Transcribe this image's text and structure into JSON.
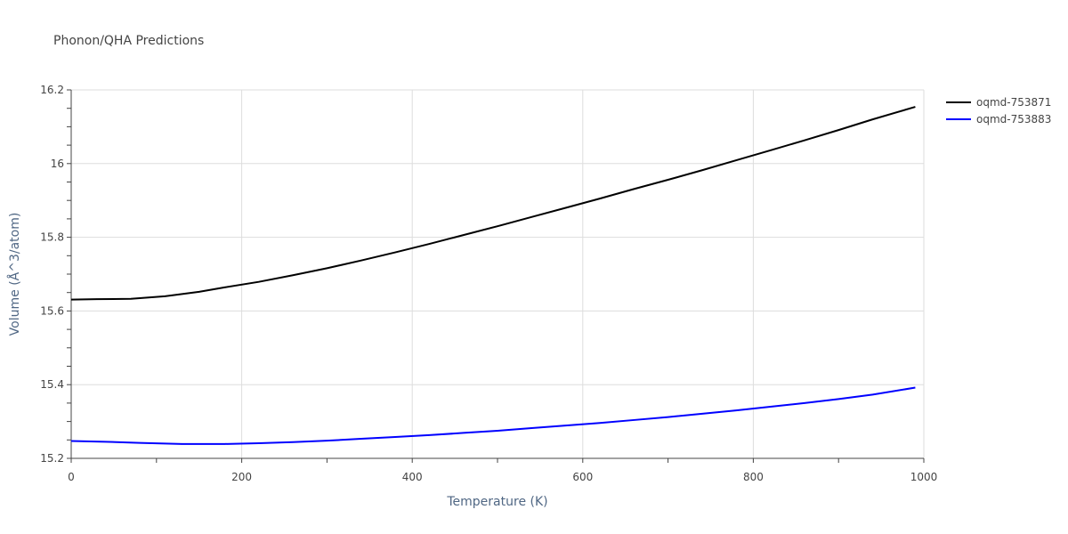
{
  "chart_data": {
    "type": "line",
    "title": "Phonon/QHA Predictions",
    "xlabel": "Temperature (K)",
    "ylabel": "Volume (Å^3/atom)",
    "xlim": [
      0,
      1000
    ],
    "ylim": [
      15.2,
      16.2
    ],
    "xticks": [
      0,
      200,
      400,
      600,
      800,
      1000
    ],
    "xtick_labels": [
      "0",
      "200",
      "400",
      "600",
      "800",
      "1000"
    ],
    "yticks": [
      15.2,
      15.4,
      15.6,
      15.8,
      16.0,
      16.2
    ],
    "ytick_labels": [
      "15.2",
      "15.4",
      "15.6",
      "15.8",
      "16",
      "16.2"
    ],
    "grid": true,
    "legend_position": "top-right",
    "series": [
      {
        "name": "oqmd-753871",
        "color": "#000000",
        "x": [
          0,
          30,
          70,
          110,
          150,
          180,
          220,
          260,
          300,
          340,
          380,
          420,
          460,
          500,
          540,
          580,
          620,
          660,
          700,
          740,
          780,
          820,
          860,
          900,
          940,
          990
        ],
        "y": [
          15.631,
          15.632,
          15.633,
          15.64,
          15.652,
          15.664,
          15.679,
          15.697,
          15.716,
          15.737,
          15.759,
          15.782,
          15.806,
          15.83,
          15.855,
          15.88,
          15.905,
          15.931,
          15.956,
          15.982,
          16.009,
          16.036,
          16.063,
          16.091,
          16.12,
          16.154
        ]
      },
      {
        "name": "oqmd-753883",
        "color": "#0000ff",
        "x": [
          0,
          40,
          80,
          130,
          180,
          220,
          260,
          300,
          340,
          380,
          420,
          460,
          500,
          540,
          580,
          620,
          660,
          700,
          740,
          780,
          820,
          860,
          900,
          940,
          990
        ],
        "y": [
          15.247,
          15.245,
          15.242,
          15.239,
          15.239,
          15.241,
          15.244,
          15.248,
          15.253,
          15.258,
          15.263,
          15.269,
          15.275,
          15.282,
          15.289,
          15.296,
          15.304,
          15.312,
          15.321,
          15.33,
          15.34,
          15.35,
          15.361,
          15.373,
          15.392
        ]
      }
    ]
  }
}
